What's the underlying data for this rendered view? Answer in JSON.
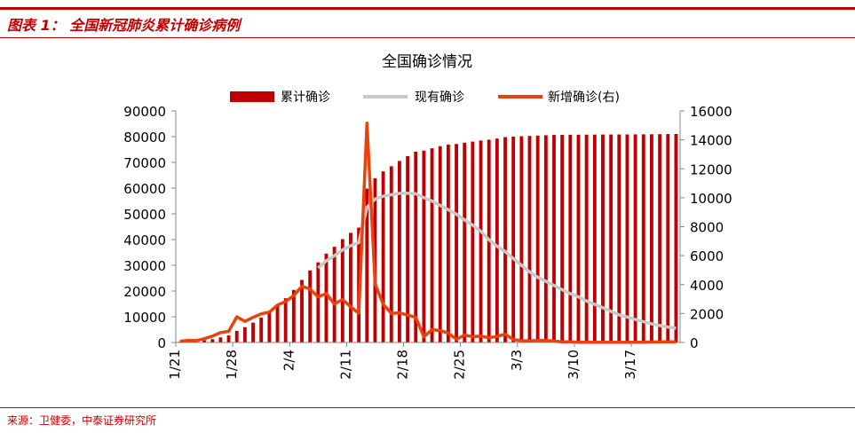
{
  "header": {
    "figure_title": "图表 1：  全国新冠肺炎累计确诊病例"
  },
  "source": "来源：卫健委，中泰证券研究所",
  "colors": {
    "accent": "#c00000",
    "bar": "#c00000",
    "current": "#c8c8c8",
    "new": "#e8420f"
  },
  "chart_data": {
    "type": "bar",
    "title": "全国确诊情况",
    "x_tick_labels": [
      "1/21",
      "1/28",
      "2/4",
      "2/11",
      "2/18",
      "2/25",
      "3/3",
      "3/10",
      "3/17"
    ],
    "tick_start_indices": [
      0,
      7,
      14,
      21,
      28,
      35,
      42,
      49,
      56
    ],
    "left_axis": {
      "min": 0,
      "max": 90000,
      "step": 10000,
      "ticks": [
        "0",
        "10000",
        "20000",
        "30000",
        "40000",
        "50000",
        "60000",
        "70000",
        "80000",
        "90000"
      ]
    },
    "right_axis": {
      "min": 0,
      "max": 16000,
      "step": 2000,
      "ticks": [
        "0",
        "2000",
        "4000",
        "6000",
        "8000",
        "10000",
        "12000",
        "14000",
        "16000"
      ]
    },
    "series": [
      {
        "name": "累计确诊",
        "type": "bar",
        "axis": "left",
        "values": [
          291,
          440,
          571,
          830,
          1287,
          1975,
          2744,
          4515,
          5974,
          7711,
          9692,
          11791,
          14380,
          17205,
          20438,
          24324,
          28018,
          31161,
          34546,
          37198,
          40171,
          42638,
          44653,
          59804,
          63851,
          66492,
          68500,
          70548,
          72436,
          74185,
          74576,
          75465,
          76288,
          76936,
          77150,
          77658,
          78064,
          78497,
          78824,
          79251,
          79824,
          80026,
          80151,
          80270,
          80409,
          80552,
          80651,
          80695,
          80735,
          80754,
          80778,
          80793,
          80813,
          80824,
          80844,
          80860,
          80881,
          80894,
          80928,
          80967,
          81008,
          81054
        ]
      },
      {
        "name": "现有确诊",
        "type": "line",
        "axis": "left",
        "values": [
          null,
          null,
          null,
          null,
          null,
          null,
          null,
          null,
          null,
          null,
          null,
          null,
          null,
          null,
          null,
          null,
          null,
          28985,
          31774,
          33738,
          35982,
          37626,
          38800,
          52526,
          55748,
          56873,
          57416,
          57934,
          58016,
          57805,
          56303,
          54965,
          53284,
          51606,
          49824,
          47672,
          45604,
          43258,
          39919,
          37414,
          35329,
          32652,
          30004,
          27433,
          25352,
          23784,
          22177,
          20533,
          19016,
          17721,
          16145,
          14831,
          13526,
          12094,
          10734,
          9893,
          8967,
          8056,
          7263,
          6569,
          6013,
          5549
        ]
      },
      {
        "name": "新增确诊(右)",
        "type": "line",
        "axis": "right",
        "values": [
          77,
          149,
          131,
          259,
          444,
          688,
          769,
          1771,
          1459,
          1737,
          1981,
          2099,
          2589,
          2825,
          3235,
          3887,
          3694,
          3143,
          3385,
          2652,
          2973,
          2467,
          2015,
          15152,
          4050,
          2641,
          2009,
          2048,
          1886,
          1749,
          391,
          889,
          823,
          648,
          214,
          508,
          406,
          433,
          327,
          427,
          573,
          202,
          125,
          119,
          139,
          143,
          99,
          44,
          40,
          19,
          24,
          15,
          20,
          11,
          20,
          16,
          21,
          13,
          34,
          39,
          41,
          46
        ]
      }
    ]
  }
}
